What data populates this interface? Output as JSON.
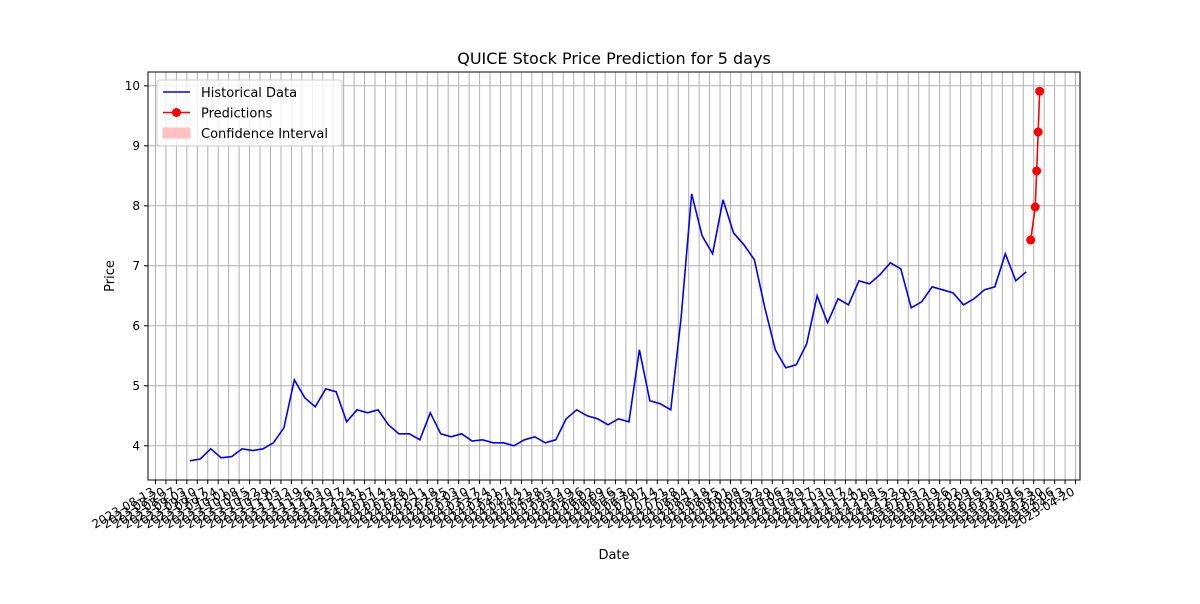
{
  "chart_data": {
    "type": "line",
    "title": "QUICE Stock Price Prediction for 5 days",
    "x_label": "Date",
    "y_label": "Price",
    "xlim": [
      "2023-08-08",
      "2025-04-23"
    ],
    "ylim": [
      3.43,
      10.23
    ],
    "yticks": [
      4,
      5,
      6,
      7,
      8,
      9,
      10
    ],
    "xticks": [
      "2023-08-13",
      "2023-08-20",
      "2023-08-27",
      "2023-09-03",
      "2023-09-10",
      "2023-09-17",
      "2023-09-24",
      "2023-10-01",
      "2023-10-08",
      "2023-10-15",
      "2023-10-22",
      "2023-10-29",
      "2023-11-05",
      "2023-11-12",
      "2023-11-19",
      "2023-11-26",
      "2023-12-03",
      "2023-12-10",
      "2023-12-17",
      "2023-12-24",
      "2023-12-31",
      "2024-01-07",
      "2024-01-14",
      "2024-01-21",
      "2024-01-28",
      "2024-02-04",
      "2024-02-11",
      "2024-02-18",
      "2024-02-25",
      "2024-03-03",
      "2024-03-10",
      "2024-03-17",
      "2024-03-24",
      "2024-03-31",
      "2024-04-07",
      "2024-04-14",
      "2024-04-21",
      "2024-04-28",
      "2024-05-05",
      "2024-05-12",
      "2024-05-19",
      "2024-05-26",
      "2024-06-02",
      "2024-06-09",
      "2024-06-16",
      "2024-06-23",
      "2024-06-30",
      "2024-07-07",
      "2024-07-14",
      "2024-07-21",
      "2024-07-28",
      "2024-08-04",
      "2024-08-11",
      "2024-08-18",
      "2024-08-25",
      "2024-09-01",
      "2024-09-08",
      "2024-09-15",
      "2024-09-22",
      "2024-09-29",
      "2024-10-06",
      "2024-10-13",
      "2024-10-20",
      "2024-10-27",
      "2024-11-03",
      "2024-11-10",
      "2024-11-17",
      "2024-11-24",
      "2024-12-01",
      "2024-12-08",
      "2024-12-15",
      "2024-12-22",
      "2024-12-29",
      "2025-01-05",
      "2025-01-12",
      "2025-01-19",
      "2025-01-26",
      "2025-02-02",
      "2025-02-09",
      "2025-02-16",
      "2025-02-23",
      "2025-03-02",
      "2025-03-09",
      "2025-03-16",
      "2025-03-23",
      "2025-03-30",
      "2025-04-06",
      "2025-04-13",
      "2025-04-20"
    ],
    "grid": true,
    "legend": "upper left",
    "series": [
      {
        "name": "Historical Data",
        "color": "#0000ff",
        "marker": false,
        "x": [
          "2023-09-05",
          "2023-09-12",
          "2023-09-19",
          "2023-09-26",
          "2023-10-03",
          "2023-10-10",
          "2023-10-17",
          "2023-10-24",
          "2023-10-31",
          "2023-11-07",
          "2023-11-14",
          "2023-11-21",
          "2023-11-28",
          "2023-12-05",
          "2023-12-12",
          "2023-12-19",
          "2023-12-26",
          "2024-01-02",
          "2024-01-09",
          "2024-01-16",
          "2024-01-23",
          "2024-01-30",
          "2024-02-06",
          "2024-02-13",
          "2024-02-20",
          "2024-02-27",
          "2024-03-05",
          "2024-03-12",
          "2024-03-19",
          "2024-03-26",
          "2024-04-02",
          "2024-04-09",
          "2024-04-16",
          "2024-04-23",
          "2024-04-30",
          "2024-05-07",
          "2024-05-14",
          "2024-05-21",
          "2024-05-28",
          "2024-06-04",
          "2024-06-11",
          "2024-06-18",
          "2024-06-25",
          "2024-07-02",
          "2024-07-09",
          "2024-07-16",
          "2024-07-23",
          "2024-07-30",
          "2024-08-06",
          "2024-08-13",
          "2024-08-20",
          "2024-08-27",
          "2024-09-03",
          "2024-09-10",
          "2024-09-17",
          "2024-09-24",
          "2024-10-01",
          "2024-10-08",
          "2024-10-15",
          "2024-10-22",
          "2024-10-29",
          "2024-11-05",
          "2024-11-12",
          "2024-11-19",
          "2024-11-26",
          "2024-12-03",
          "2024-12-10",
          "2024-12-17",
          "2024-12-24",
          "2024-12-31",
          "2025-01-07",
          "2025-01-14",
          "2025-01-21",
          "2025-01-28",
          "2025-02-04",
          "2025-02-11",
          "2025-02-18",
          "2025-02-25",
          "2025-03-04",
          "2025-03-11",
          "2025-03-18"
        ],
        "values": [
          3.75,
          3.78,
          3.95,
          3.8,
          3.82,
          3.95,
          3.92,
          3.95,
          4.05,
          4.3,
          5.1,
          4.8,
          4.65,
          4.95,
          4.9,
          4.4,
          4.6,
          4.55,
          4.6,
          4.35,
          4.2,
          4.2,
          4.1,
          4.55,
          4.2,
          4.15,
          4.2,
          4.08,
          4.1,
          4.05,
          4.05,
          4.0,
          4.1,
          4.15,
          4.05,
          4.1,
          4.45,
          4.6,
          4.5,
          4.45,
          4.35,
          4.45,
          4.4,
          5.6,
          4.75,
          4.7,
          4.6,
          6.15,
          8.2,
          7.5,
          7.2,
          8.1,
          7.55,
          7.35,
          7.1,
          6.3,
          5.6,
          5.3,
          5.35,
          5.7,
          6.5,
          6.05,
          6.45,
          6.35,
          6.75,
          6.7,
          6.85,
          7.05,
          6.95,
          6.3,
          6.4,
          6.65,
          6.6,
          6.55,
          6.35,
          6.45,
          6.6,
          6.65,
          7.2,
          6.75,
          6.9
        ]
      },
      {
        "name": "Predictions",
        "color": "#ff0000",
        "marker": true,
        "x": [
          "2025-03-21",
          "2025-03-24",
          "2025-03-25",
          "2025-03-26",
          "2025-03-27"
        ],
        "values": [
          7.43,
          7.98,
          8.58,
          9.23,
          9.91
        ]
      },
      {
        "name": "Confidence Interval",
        "color": "#ffc0c0",
        "kind": "band"
      }
    ]
  }
}
